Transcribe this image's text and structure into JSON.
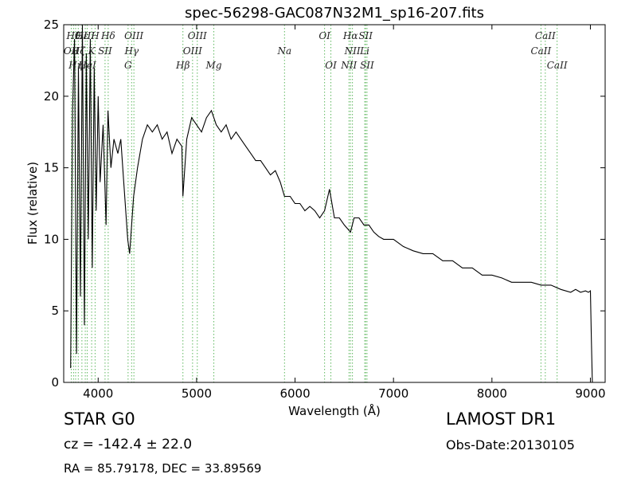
{
  "title": "spec-56298-GAC087N32M1_sp16-207.fits",
  "info": {
    "class": "STAR   G0",
    "cz": "cz = -142.4  ± 22.0",
    "radec": "RA = 85.79178, DEC = 33.89569",
    "survey": "LAMOST DR1",
    "obs_date": "Obs-Date:20130105"
  },
  "chart_data": {
    "type": "line",
    "title": "spec-56298-GAC087N32M1_sp16-207.fits",
    "xlabel": "Wavelength (Å)",
    "ylabel": "Flux (relative)",
    "xlim": [
      3650,
      9150
    ],
    "ylim": [
      0,
      25
    ],
    "xticks": [
      4000,
      5000,
      6000,
      7000,
      8000,
      9000
    ],
    "yticks": [
      0,
      5,
      10,
      15,
      20,
      25
    ],
    "series": [
      {
        "x": [
          3720,
          3740,
          3760,
          3780,
          3800,
          3820,
          3840,
          3860,
          3880,
          3900,
          3920,
          3940,
          3960,
          3980,
          4000,
          4020,
          4050,
          4080,
          4100,
          4130,
          4160,
          4200,
          4230,
          4260,
          4280,
          4300,
          4320,
          4340,
          4360,
          4400,
          4450,
          4500,
          4550,
          4600,
          4650,
          4700,
          4750,
          4800,
          4850,
          4861,
          4900,
          4950,
          5000,
          5050,
          5100,
          5150,
          5200,
          5250,
          5300,
          5350,
          5400,
          5450,
          5500,
          5550,
          5600,
          5650,
          5700,
          5750,
          5800,
          5850,
          5893,
          5950,
          6000,
          6050,
          6100,
          6150,
          6200,
          6250,
          6300,
          6350,
          6400,
          6450,
          6500,
          6563,
          6600,
          6650,
          6700,
          6750,
          6800,
          6850,
          6900,
          6950,
          7000,
          7100,
          7200,
          7300,
          7400,
          7500,
          7600,
          7700,
          7800,
          7900,
          8000,
          8100,
          8200,
          8300,
          8400,
          8500,
          8600,
          8700,
          8800,
          8850,
          8900,
          8950,
          8980,
          9000,
          9010,
          9020
        ],
        "y": [
          1,
          19,
          24,
          2,
          22,
          6,
          25,
          4,
          23,
          10,
          24,
          8,
          22,
          12,
          20,
          14,
          18,
          11,
          19,
          15,
          17,
          16,
          17,
          14,
          12,
          10,
          9,
          11,
          13,
          15,
          17,
          18,
          17.5,
          18,
          17,
          17.5,
          16,
          17,
          16.5,
          13,
          17,
          18.5,
          18,
          17.5,
          18.5,
          19,
          18,
          17.5,
          18,
          17,
          17.5,
          17,
          16.5,
          16,
          15.5,
          15.5,
          15,
          14.5,
          14.8,
          14,
          13,
          13,
          12.5,
          12.5,
          12,
          12.3,
          12,
          11.5,
          12,
          13.5,
          11.5,
          11.5,
          11,
          10.5,
          11.5,
          11.5,
          11,
          11,
          10.5,
          10.2,
          10,
          10,
          10,
          9.5,
          9.2,
          9,
          9,
          8.5,
          8.5,
          8,
          8,
          7.5,
          7.5,
          7.3,
          7,
          7,
          7,
          6.8,
          6.8,
          6.5,
          6.3,
          6.5,
          6.3,
          6.4,
          6.3,
          6.4,
          3,
          0
        ]
      }
    ],
    "lines": [
      {
        "x": 3727,
        "label": "OII",
        "row": 1
      },
      {
        "x": 3750,
        "label": "Hθ",
        "row": 0
      },
      {
        "x": 3771,
        "label": "Hη",
        "row": 2
      },
      {
        "x": 3798,
        "label": "Hζ",
        "row": 1
      },
      {
        "x": 3835,
        "label": "Hε",
        "row": 0
      },
      {
        "x": 3869,
        "label": "OIII",
        "row": 0
      },
      {
        "x": 3889,
        "label": "HeI",
        "row": 2
      },
      {
        "x": 3934,
        "label": "K",
        "row": 1
      },
      {
        "x": 3969,
        "label": "H",
        "row": 0
      },
      {
        "x": 4070,
        "label": "SII",
        "row": 1
      },
      {
        "x": 4102,
        "label": "Hδ",
        "row": 0
      },
      {
        "x": 4304,
        "label": "G",
        "row": 2
      },
      {
        "x": 4340,
        "label": "Hγ",
        "row": 1
      },
      {
        "x": 4363,
        "label": "OIII",
        "row": 0
      },
      {
        "x": 4861,
        "label": "Hβ",
        "row": 2
      },
      {
        "x": 4959,
        "label": "OIII",
        "row": 1
      },
      {
        "x": 5007,
        "label": "OIII",
        "row": 0
      },
      {
        "x": 5175,
        "label": "Mg",
        "row": 2
      },
      {
        "x": 5893,
        "label": "Na",
        "row": 1
      },
      {
        "x": 6300,
        "label": "OI",
        "row": 0
      },
      {
        "x": 6364,
        "label": "OI",
        "row": 2
      },
      {
        "x": 6548,
        "label": "NII",
        "row": 2
      },
      {
        "x": 6563,
        "label": "Hα",
        "row": 0
      },
      {
        "x": 6583,
        "label": "NII",
        "row": 1
      },
      {
        "x": 6708,
        "label": "Li",
        "row": 1
      },
      {
        "x": 6717,
        "label": "SII",
        "row": 0
      },
      {
        "x": 6731,
        "label": "SII",
        "row": 2
      },
      {
        "x": 8498,
        "label": "CaII",
        "row": 1
      },
      {
        "x": 8542,
        "label": "CaII",
        "row": 0
      },
      {
        "x": 8662,
        "label": "CaII",
        "row": 2
      }
    ]
  }
}
